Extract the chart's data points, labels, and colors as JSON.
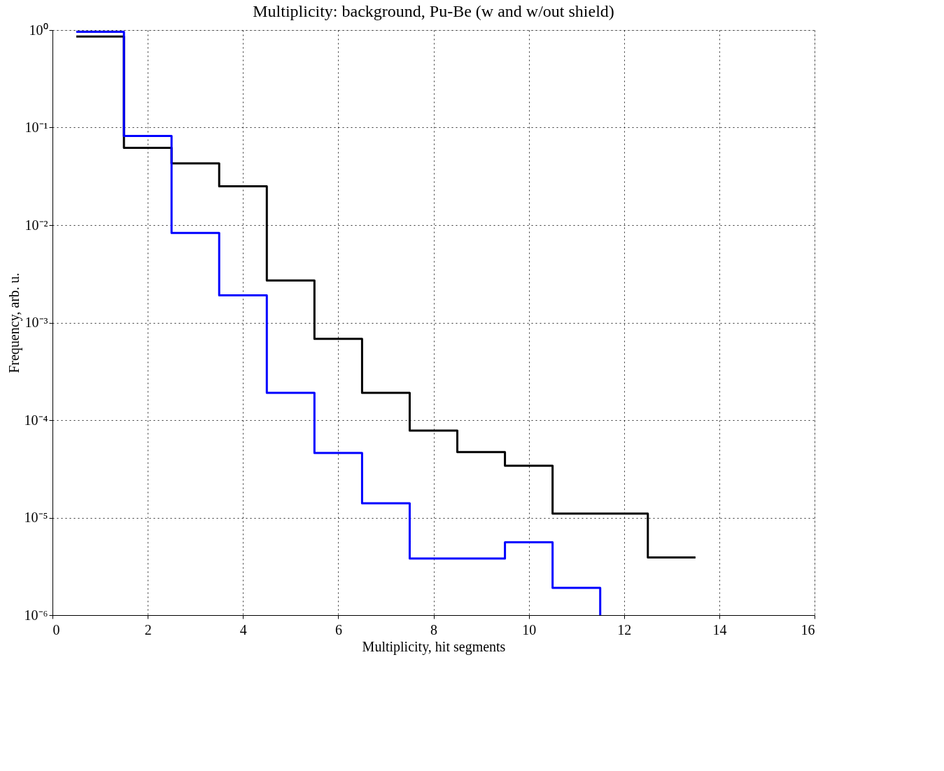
{
  "chart_data": {
    "type": "step",
    "title": "Multiplicity: background, Pu-Be (w and w/out shield)",
    "xlabel": "Multiplicity, hit segments",
    "ylabel": "Frequency, arb. u.",
    "series": [
      {
        "color": "#000000",
        "x": [
          0.5,
          1.5,
          2.5,
          3.5,
          4.5,
          5.5,
          6.5,
          7.5,
          8.5,
          9.5,
          10.5,
          11.5,
          12.5,
          13.5
        ],
        "values": [
          0.86,
          0.062,
          0.043,
          0.025,
          0.0027,
          0.00068,
          0.00019,
          7.8e-05,
          4.7e-05,
          3.4e-05,
          1.1e-05,
          1.1e-05,
          3.9e-06,
          3.9e-06
        ]
      },
      {
        "color": "#0000ff",
        "x": [
          0.5,
          1.5,
          2.5,
          3.5,
          4.5,
          5.5,
          6.5,
          7.5,
          8.5,
          9.5,
          10.5,
          11.5
        ],
        "values": [
          0.96,
          0.082,
          0.0083,
          0.0019,
          0.00019,
          4.6e-05,
          1.4e-05,
          3.8e-06,
          3.8e-06,
          5.6e-06,
          1.9e-06,
          1e-06
        ]
      }
    ],
    "xlim": [
      0,
      16
    ],
    "xticks": [
      0,
      2,
      4,
      6,
      8,
      10,
      12,
      14,
      16
    ],
    "ylim": [
      1e-06,
      1
    ],
    "log": true,
    "yticks": [
      {
        "value": 1e-06,
        "label": "10⁻⁶"
      },
      {
        "value": 1e-05,
        "label": "10⁻⁵"
      },
      {
        "value": 0.0001,
        "label": "10⁻⁴"
      },
      {
        "value": 0.001,
        "label": "10⁻³"
      },
      {
        "value": 0.01,
        "label": "10⁻²"
      },
      {
        "value": 0.1,
        "label": "10⁻¹"
      },
      {
        "value": 1,
        "label": "10⁰"
      }
    ],
    "grid": true,
    "line_style": "solid",
    "marker": "none"
  }
}
